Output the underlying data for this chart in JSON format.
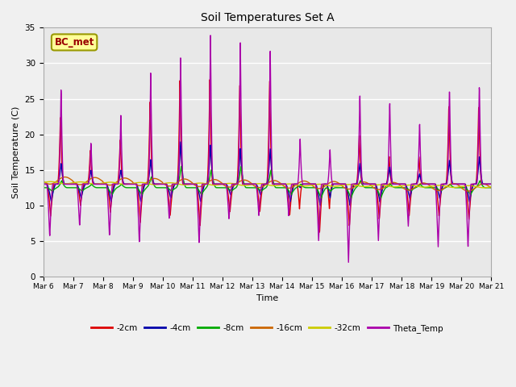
{
  "title": "Soil Temperatures Set A",
  "xlabel": "Time",
  "ylabel": "Soil Temperature (C)",
  "ylim": [
    0,
    35
  ],
  "annotation": "BC_met",
  "series_labels": [
    "-2cm",
    "-4cm",
    "-8cm",
    "-16cm",
    "-32cm",
    "Theta_Temp"
  ],
  "series_colors": [
    "#dd0000",
    "#0000aa",
    "#00aa00",
    "#cc6600",
    "#cccc00",
    "#aa00aa"
  ],
  "x_tick_labels": [
    "Mar 6",
    "Mar 7",
    "Mar 8",
    "Mar 9",
    "Mar 10",
    "Mar 11",
    "Mar 12",
    "Mar 13",
    "Mar 14",
    "Mar 15",
    "Mar 16",
    "Mar 17",
    "Mar 18",
    "Mar 19",
    "Mar 20",
    "Mar 21"
  ],
  "background_color": "#e8e8e8",
  "plot_bg_color": "#e8e8e8",
  "grid_color": "#ffffff"
}
